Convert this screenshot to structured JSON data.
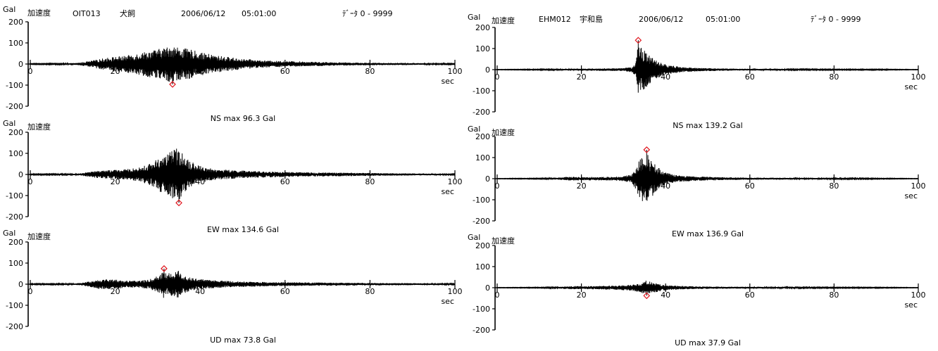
{
  "panels": [
    {
      "station": "OIT013",
      "station_name": "犬飼",
      "date": "2006/06/12",
      "time": "05:01:00",
      "data_range": "ﾃﾞｰﾀ 0 - 9999"
    },
    {
      "station": "EHM012",
      "station_name": "宇和島",
      "date": "2006/06/12",
      "time": "05:01:00",
      "data_range": "ﾃﾞｰﾀ 0 - 9999"
    }
  ],
  "chart_data": [
    {
      "type": "line",
      "title": "Gal 加速度",
      "station": "OIT013",
      "component": "NS",
      "ylabel": "Gal",
      "xlabel": "sec",
      "xlim": [
        0,
        100
      ],
      "ylim": [
        -200,
        200
      ],
      "xticks": [
        0,
        20,
        40,
        60,
        80,
        100
      ],
      "yticks": [
        200,
        100,
        0,
        -100,
        -200
      ],
      "peak": {
        "x": 33.5,
        "y": -96.3
      },
      "max_label": "NS  max  96.3 Gal",
      "envelope": [
        [
          0,
          2
        ],
        [
          10,
          3
        ],
        [
          12,
          8
        ],
        [
          14,
          14
        ],
        [
          16,
          22
        ],
        [
          18,
          30
        ],
        [
          20,
          35
        ],
        [
          22,
          38
        ],
        [
          24,
          45
        ],
        [
          26,
          55
        ],
        [
          28,
          62
        ],
        [
          30,
          70
        ],
        [
          32,
          80
        ],
        [
          33.5,
          92
        ],
        [
          34,
          85
        ],
        [
          36,
          75
        ],
        [
          38,
          68
        ],
        [
          40,
          55
        ],
        [
          42,
          48
        ],
        [
          44,
          40
        ],
        [
          46,
          35
        ],
        [
          48,
          30
        ],
        [
          50,
          24
        ],
        [
          52,
          22
        ],
        [
          54,
          18
        ],
        [
          56,
          16
        ],
        [
          60,
          14
        ],
        [
          64,
          12
        ],
        [
          68,
          10
        ],
        [
          72,
          8
        ],
        [
          76,
          7
        ],
        [
          80,
          6
        ],
        [
          84,
          5
        ],
        [
          88,
          5
        ],
        [
          92,
          4
        ],
        [
          96,
          3
        ],
        [
          100,
          2
        ]
      ]
    },
    {
      "type": "line",
      "title": "Gal 加速度",
      "station": "OIT013",
      "component": "EW",
      "ylabel": "Gal",
      "xlabel": "sec",
      "xlim": [
        0,
        100
      ],
      "ylim": [
        -200,
        200
      ],
      "xticks": [
        0,
        20,
        40,
        60,
        80,
        100
      ],
      "yticks": [
        200,
        100,
        0,
        -100,
        -200
      ],
      "peak": {
        "x": 35,
        "y": -134.6
      },
      "max_label": "EW  max  134.6 Gal",
      "envelope": [
        [
          0,
          2
        ],
        [
          10,
          3
        ],
        [
          12,
          6
        ],
        [
          14,
          12
        ],
        [
          16,
          18
        ],
        [
          18,
          20
        ],
        [
          20,
          22
        ],
        [
          22,
          24
        ],
        [
          24,
          28
        ],
        [
          26,
          34
        ],
        [
          28,
          50
        ],
        [
          30,
          75
        ],
        [
          32,
          100
        ],
        [
          33,
          110
        ],
        [
          35,
          128
        ],
        [
          36,
          95
        ],
        [
          38,
          60
        ],
        [
          40,
          40
        ],
        [
          42,
          30
        ],
        [
          44,
          25
        ],
        [
          48,
          20
        ],
        [
          52,
          16
        ],
        [
          56,
          14
        ],
        [
          60,
          12
        ],
        [
          64,
          10
        ],
        [
          70,
          9
        ],
        [
          76,
          8
        ],
        [
          80,
          7
        ],
        [
          84,
          6
        ],
        [
          90,
          5
        ],
        [
          96,
          4
        ],
        [
          100,
          2
        ]
      ]
    },
    {
      "type": "line",
      "title": "Gal 加速度",
      "station": "OIT013",
      "component": "UD",
      "ylabel": "Gal",
      "xlabel": "sec",
      "xlim": [
        0,
        100
      ],
      "ylim": [
        -200,
        200
      ],
      "xticks": [
        0,
        20,
        40,
        60,
        80,
        100
      ],
      "yticks": [
        200,
        100,
        0,
        -100,
        -200
      ],
      "peak": {
        "x": 31.5,
        "y": 73.8
      },
      "max_label": "UD  max  73.8 Gal",
      "envelope": [
        [
          0,
          2
        ],
        [
          10,
          3
        ],
        [
          12,
          6
        ],
        [
          14,
          14
        ],
        [
          16,
          22
        ],
        [
          18,
          24
        ],
        [
          20,
          22
        ],
        [
          22,
          18
        ],
        [
          24,
          16
        ],
        [
          26,
          18
        ],
        [
          28,
          22
        ],
        [
          30,
          40
        ],
        [
          31.5,
          68
        ],
        [
          32,
          50
        ],
        [
          34,
          60
        ],
        [
          35,
          65
        ],
        [
          36,
          45
        ],
        [
          38,
          30
        ],
        [
          40,
          24
        ],
        [
          44,
          18
        ],
        [
          48,
          14
        ],
        [
          52,
          12
        ],
        [
          56,
          10
        ],
        [
          60,
          9
        ],
        [
          66,
          8
        ],
        [
          72,
          7
        ],
        [
          80,
          6
        ],
        [
          88,
          5
        ],
        [
          96,
          4
        ],
        [
          100,
          2
        ]
      ]
    },
    {
      "type": "line",
      "title": "Gal 加速度",
      "station": "EHM012",
      "component": "NS",
      "ylabel": "Gal",
      "xlabel": "sec",
      "xlim": [
        0,
        100
      ],
      "ylim": [
        -200,
        200
      ],
      "xticks": [
        0,
        20,
        40,
        60,
        80,
        100
      ],
      "yticks": [
        200,
        100,
        0,
        -100,
        -200
      ],
      "peak": {
        "x": 33.5,
        "y": 139.2
      },
      "max_label": "NS  max 139.2 Gal",
      "envelope": [
        [
          0,
          1
        ],
        [
          10,
          2
        ],
        [
          14,
          3
        ],
        [
          18,
          4
        ],
        [
          22,
          5
        ],
        [
          26,
          6
        ],
        [
          30,
          8
        ],
        [
          32,
          12
        ],
        [
          33,
          40
        ],
        [
          33.5,
          135
        ],
        [
          34,
          110
        ],
        [
          35,
          95
        ],
        [
          36,
          70
        ],
        [
          38,
          40
        ],
        [
          40,
          25
        ],
        [
          42,
          18
        ],
        [
          44,
          12
        ],
        [
          48,
          8
        ],
        [
          52,
          6
        ],
        [
          56,
          5
        ],
        [
          60,
          4
        ],
        [
          70,
          3
        ],
        [
          80,
          2
        ],
        [
          90,
          2
        ],
        [
          100,
          1
        ]
      ]
    },
    {
      "type": "line",
      "title": "Gal 加速度",
      "station": "EHM012",
      "component": "EW",
      "ylabel": "Gal",
      "xlabel": "sec",
      "xlim": [
        0,
        100
      ],
      "ylim": [
        -200,
        200
      ],
      "xticks": [
        0,
        20,
        40,
        60,
        80,
        100
      ],
      "yticks": [
        200,
        100,
        0,
        -100,
        -200
      ],
      "peak": {
        "x": 35.5,
        "y": 136.9
      },
      "max_label": "EW  max 136.9 Gal",
      "envelope": [
        [
          0,
          1
        ],
        [
          10,
          2
        ],
        [
          14,
          4
        ],
        [
          16,
          8
        ],
        [
          18,
          9
        ],
        [
          20,
          8
        ],
        [
          24,
          8
        ],
        [
          28,
          9
        ],
        [
          30,
          12
        ],
        [
          32,
          20
        ],
        [
          33,
          60
        ],
        [
          34,
          95
        ],
        [
          35.5,
          130
        ],
        [
          36,
          100
        ],
        [
          38,
          60
        ],
        [
          40,
          30
        ],
        [
          42,
          18
        ],
        [
          44,
          14
        ],
        [
          48,
          10
        ],
        [
          52,
          8
        ],
        [
          56,
          6
        ],
        [
          60,
          5
        ],
        [
          70,
          4
        ],
        [
          80,
          3
        ],
        [
          90,
          2
        ],
        [
          100,
          1
        ]
      ]
    },
    {
      "type": "line",
      "title": "Gal 加速度",
      "station": "EHM012",
      "component": "UD",
      "ylabel": "Gal",
      "xlabel": "sec",
      "xlim": [
        0,
        100
      ],
      "ylim": [
        -200,
        200
      ],
      "xticks": [
        0,
        20,
        40,
        60,
        80,
        100
      ],
      "yticks": [
        200,
        100,
        0,
        -100,
        -200
      ],
      "peak": {
        "x": 35.5,
        "y": -37.9
      },
      "max_label": "UD  max  37.9 Gal",
      "envelope": [
        [
          0,
          1
        ],
        [
          10,
          2
        ],
        [
          14,
          3
        ],
        [
          16,
          6
        ],
        [
          18,
          8
        ],
        [
          20,
          7
        ],
        [
          24,
          8
        ],
        [
          28,
          10
        ],
        [
          32,
          14
        ],
        [
          34,
          22
        ],
        [
          35.5,
          35
        ],
        [
          36,
          30
        ],
        [
          38,
          20
        ],
        [
          40,
          12
        ],
        [
          44,
          8
        ],
        [
          48,
          6
        ],
        [
          52,
          5
        ],
        [
          60,
          4
        ],
        [
          70,
          3
        ],
        [
          80,
          2
        ],
        [
          90,
          2
        ],
        [
          100,
          1
        ]
      ]
    }
  ]
}
